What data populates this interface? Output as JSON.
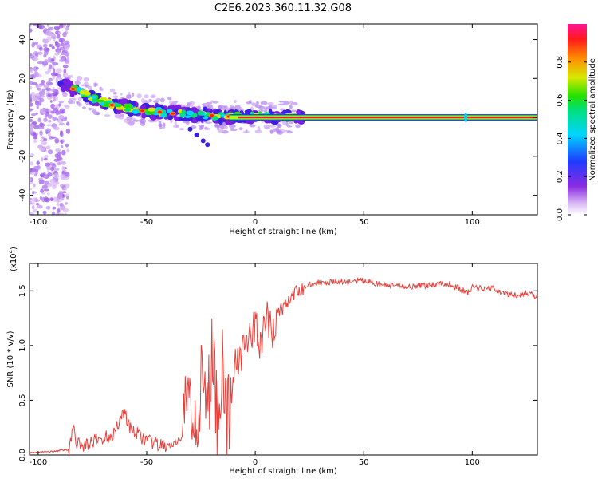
{
  "title": "C2E6.2023.360.11.32.G08",
  "chart_data": [
    {
      "type": "heatmap",
      "xlabel": "Height of straight line (km)",
      "ylabel": "Frequency (Hz)",
      "xlim": [
        -104,
        130
      ],
      "ylim": [
        -50,
        48
      ],
      "xticks": [
        -100,
        -50,
        0,
        50,
        100
      ],
      "yticks": [
        -40,
        -20,
        0,
        20,
        40
      ],
      "colorbar": {
        "label": "Normalized spectral amplitude",
        "range": [
          0,
          1
        ],
        "ticks": [
          "0.0",
          "0.2",
          "0.4",
          "0.6",
          "0.8"
        ]
      },
      "ridge": {
        "x": [
          -100,
          -90,
          -85,
          -80,
          -75,
          -70,
          -65,
          -60,
          -55,
          -50,
          -45,
          -40,
          -35,
          -30,
          -25,
          -20,
          -15,
          -10,
          0,
          20,
          130
        ],
        "freq": [
          14,
          16,
          15,
          13,
          10,
          8,
          6,
          5,
          4,
          3,
          3,
          2,
          2,
          1.5,
          1,
          1,
          0.5,
          0.5,
          0.5,
          0,
          0
        ]
      }
    },
    {
      "type": "line",
      "xlabel": "Height of straight line (km)",
      "ylabel": "SNR (10 * v/v)",
      "scale_label": "(x10",
      "scale_exp": "4",
      "xlim": [
        -104,
        130
      ],
      "ylim": [
        0,
        17500
      ],
      "xticks": [
        -100,
        -50,
        0,
        50,
        100
      ],
      "yticks": [
        0,
        5000,
        10000,
        15000
      ],
      "ytick_labels": [
        "0.0",
        "0.5",
        "1.0",
        "1.5"
      ],
      "series": [
        {
          "color": "#e8403a",
          "x": [
            -104,
            -95,
            -86,
            -84,
            -82,
            -80,
            -75,
            -70,
            -65,
            -62,
            -60,
            -58,
            -55,
            -50,
            -45,
            -40,
            -35,
            -32,
            -30,
            -28,
            -25,
            -22,
            -20,
            -17,
            -15,
            -13,
            -10,
            -7,
            -5,
            -2,
            0,
            3,
            5,
            8,
            10,
            13,
            15,
            20,
            25,
            30,
            40,
            50,
            55,
            60,
            70,
            80,
            85,
            90,
            98,
            100,
            110,
            115,
            120,
            125,
            130
          ],
          "y": [
            200,
            300,
            500,
            2500,
            1000,
            800,
            1200,
            1500,
            2000,
            3500,
            4000,
            2500,
            2000,
            1300,
            900,
            800,
            900,
            4000,
            5000,
            3500,
            6000,
            4000,
            9000,
            3000,
            10000,
            2000,
            8000,
            9000,
            11000,
            10000,
            12000,
            10000,
            12500,
            11000,
            13000,
            13500,
            14000,
            15000,
            15600,
            15800,
            15800,
            15900,
            15700,
            15500,
            15400,
            15500,
            15700,
            15600,
            14800,
            15300,
            15200,
            14700,
            14600,
            14800,
            14500
          ]
        }
      ]
    }
  ]
}
